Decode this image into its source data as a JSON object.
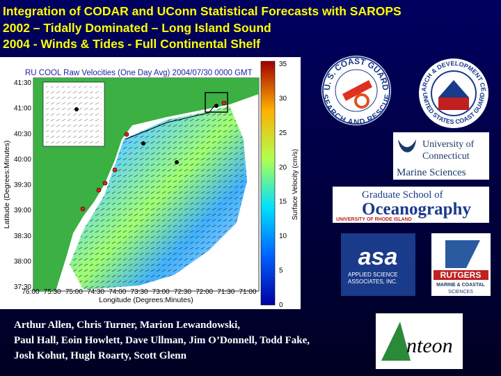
{
  "title_lines": [
    "Integration of CODAR and UConn Statistical Forecasts with SAROPS",
    "2002 – Tidally Dominated – Long Island Sound",
    "2004 -  Winds & Tides - Full Continental Shelf"
  ],
  "figure": {
    "title": "RU COOL Raw Velocities (One Day Avg) 2004/07/30 0000 GMT",
    "y_label": "Latitude (Degrees:Minutes)",
    "x_label": "Longitude (Degrees:Minutes)",
    "colorbar_label": "Surface Velocity (cm/s)",
    "y_ticks": [
      "41:30",
      "41:00",
      "40:30",
      "40:00",
      "39:30",
      "39:00",
      "38:30",
      "38:00",
      "37:30"
    ],
    "x_ticks": [
      "76:00",
      "75:30",
      "75:00",
      "74:30",
      "74:00",
      "73:30",
      "73:00",
      "72:30",
      "72:00",
      "71:30",
      "71:00"
    ],
    "colorbar_ticks": [
      35,
      30,
      25,
      20,
      15,
      10,
      5,
      0
    ]
  },
  "logos": {
    "coast_guard": {
      "top": "U. S. COAST GUARD",
      "bottom": "SEARCH AND RESCUE"
    },
    "rd_center": {
      "top": "RESEARCH & DEVELOPMENT CENTER",
      "bottom": "UNITED STATES COAST GUARD"
    },
    "uconn": {
      "line1": "University of",
      "line2": "Connecticut",
      "line3": "Marine Sciences"
    },
    "gso": {
      "line1": "Graduate School of",
      "line2": "Oceanography",
      "line3": "UNIVERSITY OF RHODE ISLAND"
    },
    "asa": {
      "mark": "asa",
      "line1": "APPLIED SCIENCE",
      "line2": "ASSOCIATES, INC."
    },
    "rutgers": {
      "line1": "RUTGERS",
      "line2": "MARINE & COASTAL",
      "line3": "SCIENCES"
    },
    "anteon": {
      "text": "nteon"
    }
  },
  "authors": [
    "Arthur Allen, Chris Turner, Marion Lewandowski,",
    "Paul Hall, Eoin Howlett, Dave Ullman, Jim O’Donnell, Todd Fake,",
    "Josh Kohut, Hugh Roarty, Scott Glenn"
  ]
}
